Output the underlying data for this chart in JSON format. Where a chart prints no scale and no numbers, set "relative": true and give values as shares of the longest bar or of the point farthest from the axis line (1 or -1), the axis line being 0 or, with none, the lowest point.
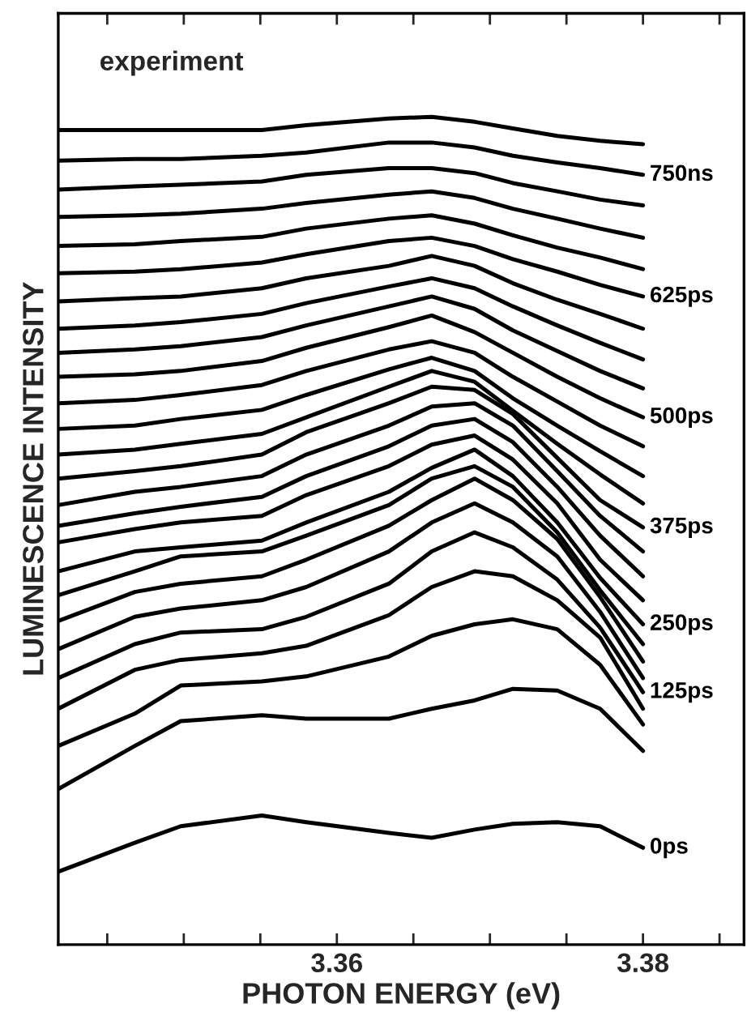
{
  "chart_data": {
    "type": "line",
    "relative": true,
    "ylabel": "LUMINESCENCE INTENSITY",
    "xlabel": "PHOTON ENERGY (eV)",
    "annotations": [
      "experiment"
    ],
    "x": [
      3.3418,
      3.3468,
      3.3498,
      3.3551,
      3.358,
      3.3634,
      3.3662,
      3.369,
      3.3715,
      3.3744,
      3.3772,
      3.38
    ],
    "xlim": [
      3.3418,
      3.3866
    ],
    "xticks": [
      {
        "value": 3.345,
        "label": null
      },
      {
        "value": 3.35,
        "label": null
      },
      {
        "value": 3.355,
        "label": null
      },
      3.36,
      {
        "value": 3.365,
        "label": null
      },
      {
        "value": 3.37,
        "label": null
      },
      {
        "value": 3.375,
        "label": null
      },
      3.38,
      {
        "value": 3.385,
        "label": null
      }
    ],
    "tick_labels": "x",
    "series": [
      {
        "color": "#000000",
        "values": [
          0.984,
          0.984,
          0.984,
          0.984,
          0.99,
          0.998,
          1.0,
          0.994,
          0.986,
          0.977,
          0.971,
          0.967
        ]
      },
      {
        "name": "750ns",
        "color": "#000000",
        "values": [
          0.947,
          0.949,
          0.949,
          0.953,
          0.957,
          0.969,
          0.969,
          0.963,
          0.953,
          0.945,
          0.938,
          0.93
        ]
      },
      {
        "color": "#000000",
        "values": [
          0.912,
          0.916,
          0.918,
          0.922,
          0.93,
          0.938,
          0.938,
          0.932,
          0.92,
          0.91,
          0.9,
          0.893
        ]
      },
      {
        "color": "#000000",
        "values": [
          0.879,
          0.881,
          0.883,
          0.889,
          0.896,
          0.906,
          0.91,
          0.902,
          0.889,
          0.877,
          0.865,
          0.854
        ]
      },
      {
        "color": "#000000",
        "values": [
          0.844,
          0.846,
          0.85,
          0.855,
          0.865,
          0.877,
          0.881,
          0.871,
          0.857,
          0.842,
          0.83,
          0.816
        ]
      },
      {
        "name": "625ps",
        "color": "#000000",
        "values": [
          0.811,
          0.813,
          0.816,
          0.824,
          0.834,
          0.85,
          0.854,
          0.844,
          0.828,
          0.813,
          0.797,
          0.783
        ]
      },
      {
        "color": "#000000",
        "values": [
          0.777,
          0.781,
          0.783,
          0.793,
          0.805,
          0.82,
          0.832,
          0.82,
          0.799,
          0.779,
          0.762,
          0.744
        ]
      },
      {
        "color": "#000000",
        "values": [
          0.744,
          0.748,
          0.752,
          0.762,
          0.775,
          0.795,
          0.805,
          0.793,
          0.771,
          0.748,
          0.727,
          0.707
        ]
      },
      {
        "color": "#000000",
        "values": [
          0.715,
          0.719,
          0.723,
          0.734,
          0.748,
          0.771,
          0.783,
          0.768,
          0.742,
          0.717,
          0.693,
          0.672
        ]
      },
      {
        "name": "500ps",
        "color": "#000000",
        "values": [
          0.686,
          0.689,
          0.693,
          0.705,
          0.721,
          0.746,
          0.76,
          0.74,
          0.715,
          0.686,
          0.66,
          0.637
        ]
      },
      {
        "color": "#000000",
        "values": [
          0.654,
          0.658,
          0.664,
          0.676,
          0.693,
          0.719,
          0.729,
          0.715,
          0.686,
          0.656,
          0.627,
          0.602
        ]
      },
      {
        "color": "#000000",
        "values": [
          0.623,
          0.627,
          0.635,
          0.646,
          0.664,
          0.695,
          0.709,
          0.693,
          0.66,
          0.627,
          0.596,
          0.566
        ]
      },
      {
        "color": "#000000",
        "values": [
          0.592,
          0.598,
          0.605,
          0.617,
          0.637,
          0.674,
          0.693,
          0.68,
          0.645,
          0.605,
          0.568,
          0.533
        ]
      },
      {
        "name": "375ps",
        "color": "#000000",
        "values": [
          0.563,
          0.572,
          0.578,
          0.592,
          0.619,
          0.654,
          0.674,
          0.67,
          0.641,
          0.588,
          0.537,
          0.504
        ]
      },
      {
        "color": "#000000",
        "values": [
          0.531,
          0.547,
          0.553,
          0.566,
          0.592,
          0.627,
          0.65,
          0.654,
          0.627,
          0.572,
          0.518,
          0.475
        ]
      },
      {
        "color": "#000000",
        "values": [
          0.506,
          0.521,
          0.529,
          0.541,
          0.566,
          0.602,
          0.627,
          0.635,
          0.607,
          0.553,
          0.494,
          0.445
        ]
      },
      {
        "color": "#000000",
        "values": [
          0.486,
          0.502,
          0.51,
          0.518,
          0.543,
          0.578,
          0.604,
          0.615,
          0.586,
          0.533,
          0.465,
          0.416
        ]
      },
      {
        "name": "250ps",
        "color": "#000000",
        "values": [
          0.451,
          0.475,
          0.48,
          0.488,
          0.51,
          0.547,
          0.576,
          0.598,
          0.566,
          0.51,
          0.443,
          0.387
        ]
      },
      {
        "color": "#000000",
        "values": [
          0.422,
          0.451,
          0.469,
          0.475,
          0.494,
          0.531,
          0.563,
          0.578,
          0.553,
          0.498,
          0.428,
          0.363
        ]
      },
      {
        "color": "#000000",
        "values": [
          0.391,
          0.426,
          0.436,
          0.445,
          0.465,
          0.506,
          0.537,
          0.563,
          0.537,
          0.49,
          0.42,
          0.342
        ]
      },
      {
        "color": "#000000",
        "values": [
          0.357,
          0.396,
          0.406,
          0.416,
          0.432,
          0.475,
          0.51,
          0.533,
          0.51,
          0.469,
          0.402,
          0.322
        ]
      },
      {
        "name": "125ps",
        "color": "#000000",
        "values": [
          0.322,
          0.363,
          0.377,
          0.381,
          0.396,
          0.436,
          0.475,
          0.498,
          0.48,
          0.441,
          0.383,
          0.305
        ]
      },
      {
        "color": "#000000",
        "values": [
          0.285,
          0.332,
          0.344,
          0.352,
          0.361,
          0.398,
          0.432,
          0.451,
          0.445,
          0.416,
          0.371,
          0.285
        ]
      },
      {
        "color": "#000000",
        "values": [
          0.24,
          0.279,
          0.313,
          0.318,
          0.324,
          0.348,
          0.373,
          0.387,
          0.393,
          0.381,
          0.338,
          0.266
        ]
      },
      {
        "color": "#000000",
        "values": [
          0.188,
          0.24,
          0.27,
          0.277,
          0.273,
          0.273,
          0.285,
          0.295,
          0.309,
          0.307,
          0.285,
          0.234
        ]
      },
      {
        "name": "0ps",
        "color": "#000000",
        "values": [
          0.088,
          0.123,
          0.143,
          0.156,
          0.148,
          0.135,
          0.129,
          0.139,
          0.146,
          0.148,
          0.143,
          0.117
        ]
      }
    ]
  }
}
